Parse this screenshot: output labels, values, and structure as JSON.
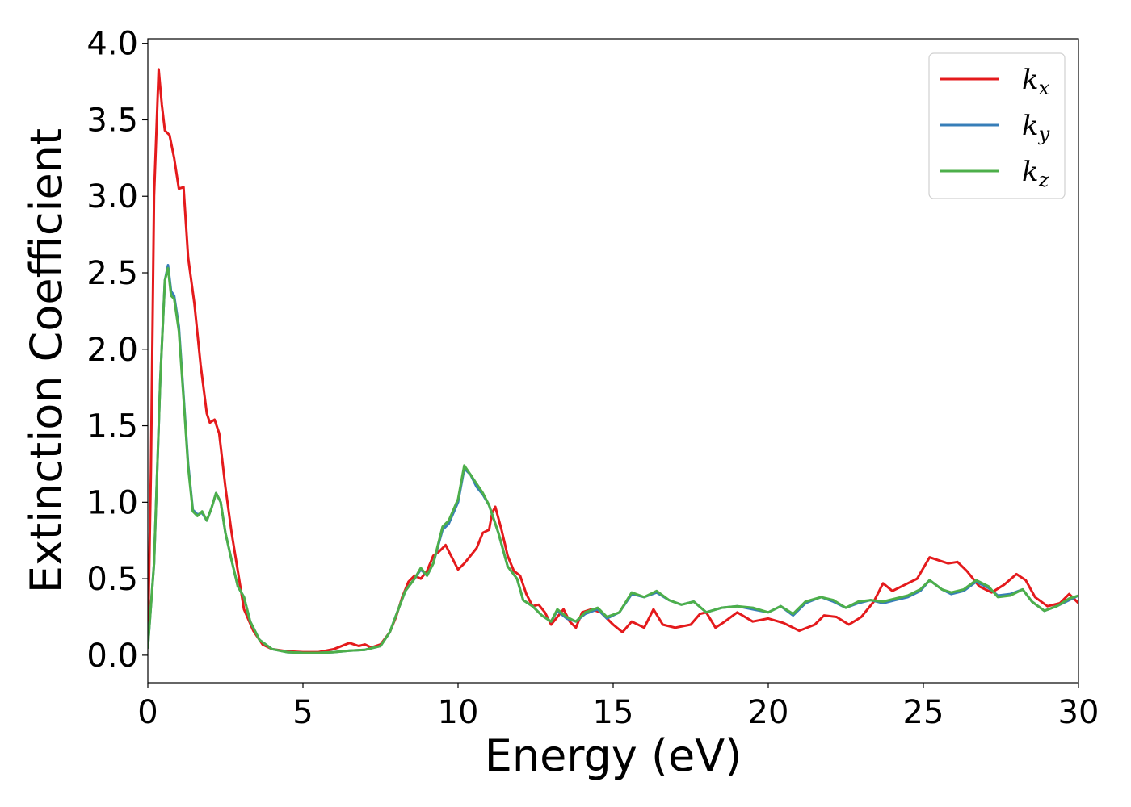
{
  "chart_data": {
    "type": "line",
    "title": "",
    "xlabel": "Energy (eV)",
    "ylabel": "Extinction Coefficient",
    "xlim": [
      0,
      30
    ],
    "ylim": [
      -0.18,
      4.03
    ],
    "xticks": [
      0,
      5,
      10,
      15,
      20,
      25,
      30
    ],
    "xtick_labels": [
      "0",
      "5",
      "10",
      "15",
      "20",
      "25",
      "30"
    ],
    "yticks": [
      0.0,
      0.5,
      1.0,
      1.5,
      2.0,
      2.5,
      3.0,
      3.5,
      4.0
    ],
    "ytick_labels": [
      "0.0",
      "0.5",
      "1.0",
      "1.5",
      "2.0",
      "2.5",
      "3.0",
      "3.5",
      "4.0"
    ],
    "grid": false,
    "legend_position": "top-right",
    "series": [
      {
        "name": "k_x",
        "legend_base": "k",
        "legend_sub": "x",
        "color": "#e41a1c",
        "points": [
          [
            0,
            0.05
          ],
          [
            0.1,
            1.2
          ],
          [
            0.2,
            3.0
          ],
          [
            0.35,
            3.83
          ],
          [
            0.45,
            3.6
          ],
          [
            0.55,
            3.43
          ],
          [
            0.7,
            3.4
          ],
          [
            0.85,
            3.25
          ],
          [
            1.0,
            3.05
          ],
          [
            1.15,
            3.06
          ],
          [
            1.3,
            2.6
          ],
          [
            1.5,
            2.3
          ],
          [
            1.7,
            1.9
          ],
          [
            1.9,
            1.58
          ],
          [
            2.0,
            1.52
          ],
          [
            2.15,
            1.54
          ],
          [
            2.3,
            1.45
          ],
          [
            2.5,
            1.1
          ],
          [
            2.7,
            0.8
          ],
          [
            2.9,
            0.55
          ],
          [
            3.1,
            0.3
          ],
          [
            3.4,
            0.16
          ],
          [
            3.7,
            0.07
          ],
          [
            4.0,
            0.04
          ],
          [
            4.5,
            0.025
          ],
          [
            5.0,
            0.02
          ],
          [
            5.5,
            0.02
          ],
          [
            6.0,
            0.04
          ],
          [
            6.5,
            0.08
          ],
          [
            6.8,
            0.06
          ],
          [
            7.0,
            0.07
          ],
          [
            7.2,
            0.05
          ],
          [
            7.5,
            0.07
          ],
          [
            7.8,
            0.15
          ],
          [
            8.0,
            0.25
          ],
          [
            8.2,
            0.38
          ],
          [
            8.4,
            0.48
          ],
          [
            8.6,
            0.52
          ],
          [
            8.8,
            0.5
          ],
          [
            9.0,
            0.55
          ],
          [
            9.2,
            0.65
          ],
          [
            9.4,
            0.68
          ],
          [
            9.6,
            0.72
          ],
          [
            9.8,
            0.64
          ],
          [
            10.0,
            0.56
          ],
          [
            10.2,
            0.6
          ],
          [
            10.4,
            0.65
          ],
          [
            10.6,
            0.7
          ],
          [
            10.8,
            0.8
          ],
          [
            11.0,
            0.82
          ],
          [
            11.1,
            0.93
          ],
          [
            11.2,
            0.97
          ],
          [
            11.4,
            0.82
          ],
          [
            11.6,
            0.65
          ],
          [
            11.8,
            0.55
          ],
          [
            12.0,
            0.52
          ],
          [
            12.2,
            0.4
          ],
          [
            12.4,
            0.32
          ],
          [
            12.6,
            0.33
          ],
          [
            12.8,
            0.28
          ],
          [
            13.0,
            0.2
          ],
          [
            13.2,
            0.25
          ],
          [
            13.4,
            0.3
          ],
          [
            13.6,
            0.22
          ],
          [
            13.8,
            0.18
          ],
          [
            14.0,
            0.28
          ],
          [
            14.3,
            0.3
          ],
          [
            14.6,
            0.28
          ],
          [
            15.0,
            0.2
          ],
          [
            15.3,
            0.15
          ],
          [
            15.6,
            0.22
          ],
          [
            16.0,
            0.18
          ],
          [
            16.3,
            0.3
          ],
          [
            16.6,
            0.2
          ],
          [
            17.0,
            0.18
          ],
          [
            17.5,
            0.2
          ],
          [
            17.8,
            0.27
          ],
          [
            18.0,
            0.28
          ],
          [
            18.3,
            0.18
          ],
          [
            18.6,
            0.22
          ],
          [
            19.0,
            0.28
          ],
          [
            19.5,
            0.22
          ],
          [
            20.0,
            0.24
          ],
          [
            20.5,
            0.21
          ],
          [
            20.8,
            0.18
          ],
          [
            21.0,
            0.16
          ],
          [
            21.5,
            0.2
          ],
          [
            21.8,
            0.26
          ],
          [
            22.2,
            0.25
          ],
          [
            22.6,
            0.2
          ],
          [
            23.0,
            0.25
          ],
          [
            23.4,
            0.35
          ],
          [
            23.7,
            0.47
          ],
          [
            24.0,
            0.42
          ],
          [
            24.4,
            0.46
          ],
          [
            24.8,
            0.5
          ],
          [
            25.2,
            0.64
          ],
          [
            25.5,
            0.62
          ],
          [
            25.8,
            0.6
          ],
          [
            26.1,
            0.61
          ],
          [
            26.4,
            0.55
          ],
          [
            26.8,
            0.45
          ],
          [
            27.2,
            0.41
          ],
          [
            27.6,
            0.46
          ],
          [
            28.0,
            0.53
          ],
          [
            28.3,
            0.49
          ],
          [
            28.6,
            0.38
          ],
          [
            29.0,
            0.32
          ],
          [
            29.4,
            0.34
          ],
          [
            29.7,
            0.4
          ],
          [
            30.0,
            0.34
          ]
        ]
      },
      {
        "name": "k_y",
        "legend_base": "k",
        "legend_sub": "y",
        "color": "#377eb8",
        "points": [
          [
            0,
            0.05
          ],
          [
            0.2,
            0.6
          ],
          [
            0.4,
            1.8
          ],
          [
            0.55,
            2.45
          ],
          [
            0.65,
            2.55
          ],
          [
            0.75,
            2.38
          ],
          [
            0.85,
            2.35
          ],
          [
            1.0,
            2.15
          ],
          [
            1.15,
            1.7
          ],
          [
            1.3,
            1.25
          ],
          [
            1.45,
            0.95
          ],
          [
            1.6,
            0.92
          ],
          [
            1.75,
            0.93
          ],
          [
            1.9,
            0.88
          ],
          [
            2.05,
            0.96
          ],
          [
            2.2,
            1.06
          ],
          [
            2.35,
            1.0
          ],
          [
            2.5,
            0.8
          ],
          [
            2.7,
            0.62
          ],
          [
            2.9,
            0.45
          ],
          [
            3.1,
            0.38
          ],
          [
            3.3,
            0.22
          ],
          [
            3.6,
            0.1
          ],
          [
            4.0,
            0.04
          ],
          [
            4.5,
            0.02
          ],
          [
            5.0,
            0.015
          ],
          [
            5.5,
            0.015
          ],
          [
            6.0,
            0.02
          ],
          [
            6.5,
            0.03
          ],
          [
            7.0,
            0.035
          ],
          [
            7.5,
            0.06
          ],
          [
            7.8,
            0.15
          ],
          [
            8.0,
            0.26
          ],
          [
            8.3,
            0.42
          ],
          [
            8.6,
            0.5
          ],
          [
            8.8,
            0.56
          ],
          [
            9.0,
            0.52
          ],
          [
            9.2,
            0.6
          ],
          [
            9.5,
            0.82
          ],
          [
            9.7,
            0.86
          ],
          [
            10.0,
            1.0
          ],
          [
            10.2,
            1.22
          ],
          [
            10.4,
            1.18
          ],
          [
            10.6,
            1.1
          ],
          [
            10.8,
            1.05
          ],
          [
            11.0,
            0.98
          ],
          [
            11.3,
            0.8
          ],
          [
            11.6,
            0.58
          ],
          [
            11.9,
            0.5
          ],
          [
            12.1,
            0.36
          ],
          [
            12.4,
            0.32
          ],
          [
            12.7,
            0.26
          ],
          [
            13.0,
            0.22
          ],
          [
            13.2,
            0.29
          ],
          [
            13.5,
            0.24
          ],
          [
            13.8,
            0.22
          ],
          [
            14.1,
            0.27
          ],
          [
            14.5,
            0.3
          ],
          [
            14.8,
            0.24
          ],
          [
            15.2,
            0.28
          ],
          [
            15.6,
            0.4
          ],
          [
            16.0,
            0.38
          ],
          [
            16.4,
            0.41
          ],
          [
            16.8,
            0.36
          ],
          [
            17.2,
            0.33
          ],
          [
            17.6,
            0.35
          ],
          [
            18.0,
            0.28
          ],
          [
            18.5,
            0.31
          ],
          [
            19.0,
            0.32
          ],
          [
            19.5,
            0.3
          ],
          [
            20.0,
            0.28
          ],
          [
            20.4,
            0.32
          ],
          [
            20.8,
            0.26
          ],
          [
            21.2,
            0.34
          ],
          [
            21.7,
            0.38
          ],
          [
            22.1,
            0.35
          ],
          [
            22.5,
            0.31
          ],
          [
            22.9,
            0.34
          ],
          [
            23.3,
            0.36
          ],
          [
            23.7,
            0.34
          ],
          [
            24.1,
            0.36
          ],
          [
            24.5,
            0.38
          ],
          [
            24.9,
            0.42
          ],
          [
            25.2,
            0.49
          ],
          [
            25.6,
            0.43
          ],
          [
            25.9,
            0.4
          ],
          [
            26.3,
            0.42
          ],
          [
            26.7,
            0.48
          ],
          [
            27.1,
            0.44
          ],
          [
            27.4,
            0.39
          ],
          [
            27.8,
            0.4
          ],
          [
            28.2,
            0.43
          ],
          [
            28.5,
            0.35
          ],
          [
            28.9,
            0.29
          ],
          [
            29.3,
            0.32
          ],
          [
            29.7,
            0.36
          ],
          [
            30.0,
            0.39
          ]
        ]
      },
      {
        "name": "k_z",
        "legend_base": "k",
        "legend_sub": "z",
        "color": "#4daf4a",
        "points": [
          [
            0,
            0.05
          ],
          [
            0.2,
            0.6
          ],
          [
            0.4,
            1.8
          ],
          [
            0.55,
            2.45
          ],
          [
            0.65,
            2.53
          ],
          [
            0.75,
            2.35
          ],
          [
            0.85,
            2.33
          ],
          [
            1.0,
            2.12
          ],
          [
            1.15,
            1.68
          ],
          [
            1.3,
            1.23
          ],
          [
            1.45,
            0.94
          ],
          [
            1.6,
            0.91
          ],
          [
            1.75,
            0.94
          ],
          [
            1.9,
            0.88
          ],
          [
            2.05,
            0.96
          ],
          [
            2.2,
            1.06
          ],
          [
            2.35,
            1.0
          ],
          [
            2.5,
            0.8
          ],
          [
            2.7,
            0.62
          ],
          [
            2.9,
            0.45
          ],
          [
            3.1,
            0.38
          ],
          [
            3.3,
            0.22
          ],
          [
            3.6,
            0.1
          ],
          [
            4.0,
            0.04
          ],
          [
            4.5,
            0.02
          ],
          [
            5.0,
            0.015
          ],
          [
            5.5,
            0.015
          ],
          [
            6.0,
            0.02
          ],
          [
            6.5,
            0.03
          ],
          [
            7.0,
            0.035
          ],
          [
            7.5,
            0.06
          ],
          [
            7.8,
            0.15
          ],
          [
            8.0,
            0.26
          ],
          [
            8.3,
            0.42
          ],
          [
            8.6,
            0.5
          ],
          [
            8.8,
            0.57
          ],
          [
            9.0,
            0.52
          ],
          [
            9.2,
            0.6
          ],
          [
            9.5,
            0.84
          ],
          [
            9.7,
            0.88
          ],
          [
            10.0,
            1.02
          ],
          [
            10.2,
            1.24
          ],
          [
            10.4,
            1.18
          ],
          [
            10.6,
            1.12
          ],
          [
            10.8,
            1.06
          ],
          [
            11.0,
            0.98
          ],
          [
            11.3,
            0.8
          ],
          [
            11.6,
            0.58
          ],
          [
            11.9,
            0.5
          ],
          [
            12.1,
            0.36
          ],
          [
            12.4,
            0.32
          ],
          [
            12.7,
            0.26
          ],
          [
            13.0,
            0.22
          ],
          [
            13.2,
            0.3
          ],
          [
            13.5,
            0.25
          ],
          [
            13.8,
            0.22
          ],
          [
            14.1,
            0.28
          ],
          [
            14.5,
            0.31
          ],
          [
            14.8,
            0.25
          ],
          [
            15.2,
            0.28
          ],
          [
            15.6,
            0.41
          ],
          [
            16.0,
            0.38
          ],
          [
            16.4,
            0.42
          ],
          [
            16.8,
            0.36
          ],
          [
            17.2,
            0.33
          ],
          [
            17.6,
            0.35
          ],
          [
            18.0,
            0.28
          ],
          [
            18.5,
            0.31
          ],
          [
            19.0,
            0.32
          ],
          [
            19.5,
            0.31
          ],
          [
            20.0,
            0.28
          ],
          [
            20.4,
            0.32
          ],
          [
            20.8,
            0.27
          ],
          [
            21.2,
            0.35
          ],
          [
            21.7,
            0.38
          ],
          [
            22.1,
            0.36
          ],
          [
            22.5,
            0.31
          ],
          [
            22.9,
            0.35
          ],
          [
            23.3,
            0.36
          ],
          [
            23.7,
            0.35
          ],
          [
            24.1,
            0.37
          ],
          [
            24.5,
            0.39
          ],
          [
            24.9,
            0.43
          ],
          [
            25.2,
            0.49
          ],
          [
            25.6,
            0.43
          ],
          [
            25.9,
            0.41
          ],
          [
            26.3,
            0.43
          ],
          [
            26.7,
            0.49
          ],
          [
            27.1,
            0.45
          ],
          [
            27.4,
            0.38
          ],
          [
            27.8,
            0.39
          ],
          [
            28.2,
            0.43
          ],
          [
            28.5,
            0.35
          ],
          [
            28.9,
            0.29
          ],
          [
            29.3,
            0.32
          ],
          [
            29.7,
            0.37
          ],
          [
            30.0,
            0.39
          ]
        ]
      }
    ]
  }
}
